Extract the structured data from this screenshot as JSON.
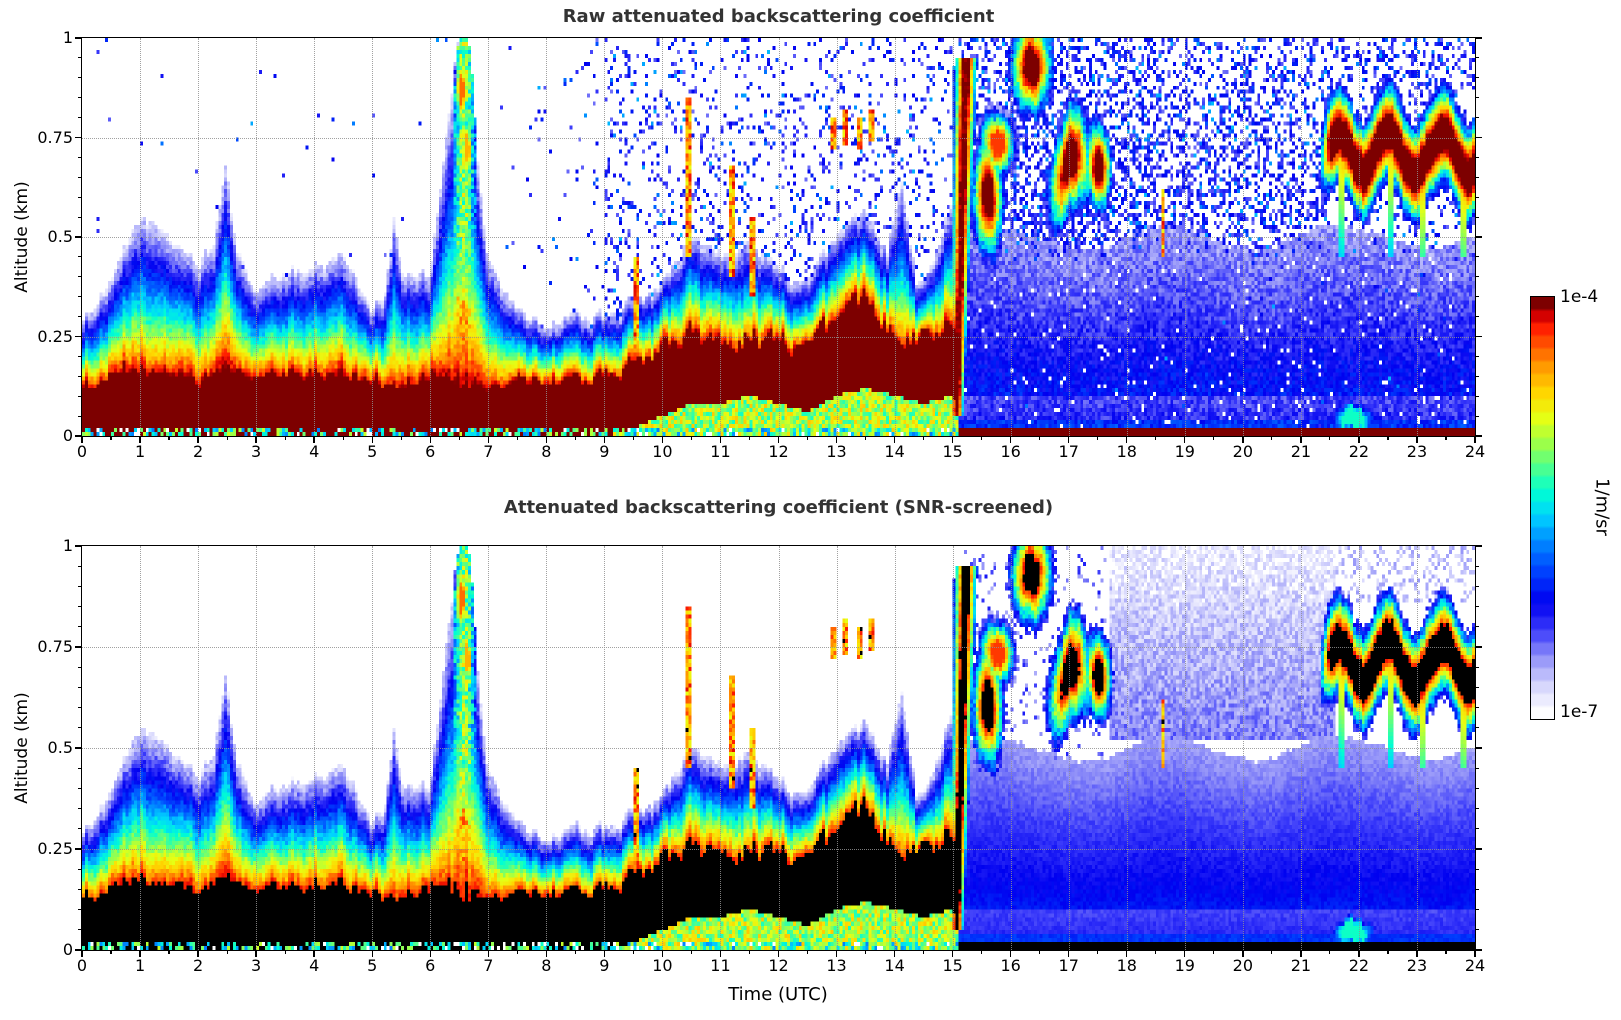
{
  "figure": {
    "background": "#ffffff",
    "title_color": "#333333",
    "axis_color": "#000000"
  },
  "chart_data": {
    "type": "heatmap",
    "x": {
      "label": "Time (UTC)",
      "min": 0,
      "max": 24,
      "major_ticks": [
        0,
        1,
        2,
        3,
        4,
        5,
        6,
        7,
        8,
        9,
        10,
        11,
        12,
        13,
        14,
        15,
        16,
        17,
        18,
        19,
        20,
        21,
        22,
        23,
        24
      ],
      "tick_labels": [
        "0",
        "1",
        "2",
        "3",
        "4",
        "5",
        "6",
        "7",
        "8",
        "9",
        "10",
        "11",
        "12",
        "13",
        "14",
        "15",
        "16",
        "17",
        "18",
        "19",
        "20",
        "21",
        "22",
        "23",
        "24"
      ],
      "minor_tick_step": 0.5,
      "gridlines": [
        1,
        2,
        3,
        4,
        5,
        6,
        7,
        8,
        9,
        10,
        11,
        12,
        13,
        14,
        15,
        16,
        17,
        18,
        19,
        20,
        21,
        22,
        23
      ]
    },
    "y": {
      "label": "Altitude (km)",
      "min": 0,
      "max": 1,
      "major_ticks": [
        0,
        0.25,
        0.5,
        0.75,
        1
      ],
      "tick_labels": [
        "0",
        "0.25",
        "0.5",
        "0.75",
        "1"
      ],
      "minor_tick_step": 0.05,
      "gridlines": [
        0.25,
        0.5,
        0.75
      ]
    },
    "colorbar": {
      "max_label": "1e-4",
      "min_label": "1e-7",
      "unit": "1/m/sr",
      "scale": "log",
      "colormap": "jet-with-white-minimum",
      "bands": 33
    },
    "panels": [
      {
        "title": "Raw attenuated backscattering coefficient",
        "id": "raw",
        "black_saturation": false,
        "noise_screened": false
      },
      {
        "title": "Attenuated backscattering coefficient (SNR-screened)",
        "id": "screened",
        "black_saturation": true,
        "noise_screened": true
      }
    ],
    "model": {
      "comment_units": "hours UTC / km; values are normalized log-backscatter 0..1 (0 = 1e-7, 1 = 1e-4 1/m/sr)",
      "sample_step_h": 0.5,
      "layer_top_km": [
        0.3,
        0.38,
        0.55,
        0.5,
        0.44,
        0.5,
        0.37,
        0.4,
        0.43,
        0.46,
        0.32,
        0.42,
        0.4,
        1.0,
        0.45,
        0.3,
        0.28,
        0.3,
        0.3,
        0.34,
        0.38,
        0.5,
        0.46,
        0.5,
        0.42,
        0.38,
        0.5,
        0.55,
        0.45,
        0.38,
        0.6,
        0.4,
        0.38,
        0.36,
        0.38,
        0.4,
        0.35,
        0.33,
        0.32,
        0.3,
        0.3,
        0.3,
        0.3,
        0.3,
        0.3,
        0.3,
        0.3,
        0.3,
        0.3
      ],
      "core_top_km": [
        0.13,
        0.14,
        0.16,
        0.15,
        0.14,
        0.16,
        0.15,
        0.15,
        0.16,
        0.16,
        0.14,
        0.13,
        0.14,
        0.13,
        0.12,
        0.13,
        0.14,
        0.14,
        0.15,
        0.18,
        0.22,
        0.24,
        0.24,
        0.26,
        0.24,
        0.22,
        0.28,
        0.32,
        0.28,
        0.26,
        0.3,
        0.02,
        0.02,
        0.02,
        0.02,
        0.02,
        0.02,
        0.02,
        0.02,
        0.02,
        0.02,
        0.02,
        0.02,
        0.02,
        0.02,
        0.02,
        0.02,
        0.02,
        0.02
      ],
      "core_base_km": [
        0,
        0,
        0,
        0,
        0,
        0,
        0,
        0,
        0,
        0,
        0,
        0,
        0,
        0,
        0,
        0,
        0,
        0,
        0,
        0.02,
        0.05,
        0.08,
        0.08,
        0.1,
        0.08,
        0.06,
        0.1,
        0.12,
        0.1,
        0.08,
        0.1,
        0,
        0,
        0,
        0,
        0,
        0,
        0,
        0,
        0,
        0,
        0,
        0,
        0,
        0,
        0,
        0,
        0,
        0
      ],
      "layer_era_end_h": 15.12,
      "blue_field": {
        "start_h": 15.12,
        "top_km": 0.5
      },
      "clouds": [
        {
          "kind": "plume",
          "t0": 6.38,
          "t1": 6.78,
          "z0": 0.12,
          "z1": 1.0,
          "peak": 0.62
        },
        {
          "kind": "blob",
          "t0": 6.45,
          "t1": 6.62,
          "zc": 0.87,
          "h": 0.14,
          "peak": 0.88
        },
        {
          "kind": "blob",
          "t0": 6.55,
          "t1": 6.72,
          "zc": 0.72,
          "h": 0.12,
          "peak": 0.82
        },
        {
          "kind": "wall",
          "t0": 14.98,
          "t1": 15.35,
          "z0": 0.05,
          "z1": 0.95,
          "peak": 1.0
        },
        {
          "kind": "blob",
          "t0": 15.42,
          "t1": 15.8,
          "zc": 0.6,
          "h": 0.22,
          "peak": 1.0
        },
        {
          "kind": "blob",
          "t0": 15.55,
          "t1": 16.0,
          "zc": 0.74,
          "h": 0.12,
          "peak": 0.92
        },
        {
          "kind": "blob",
          "t0": 16.1,
          "t1": 16.62,
          "zc": 0.93,
          "h": 0.18,
          "peak": 1.0
        },
        {
          "kind": "blob",
          "t0": 16.75,
          "t1": 17.3,
          "zc": 0.66,
          "h": 0.2,
          "peak": 1.0,
          "wavy": true
        },
        {
          "kind": "blob",
          "t0": 17.35,
          "t1": 17.68,
          "zc": 0.68,
          "h": 0.16,
          "peak": 1.0
        },
        {
          "kind": "layer",
          "t0": 21.55,
          "t1": 24.0,
          "zc": 0.71,
          "h": 0.17,
          "peak": 1.0,
          "wavy": true,
          "downspikes": [
            21.68,
            22.55,
            23.12,
            23.8
          ]
        },
        {
          "kind": "blob",
          "t0": 7.45,
          "t1": 7.95,
          "zc": 0.07,
          "h": 0.12,
          "peak": 0.62
        },
        {
          "kind": "blob",
          "t0": 21.5,
          "t1": 22.3,
          "zc": 0.04,
          "h": 0.08,
          "peak": 0.55
        }
      ],
      "streaks": [
        {
          "t": 9.55,
          "z0": 0.1,
          "z1": 0.45
        },
        {
          "t": 10.45,
          "z0": 0.45,
          "z1": 0.85
        },
        {
          "t": 11.2,
          "z0": 0.4,
          "z1": 0.68
        },
        {
          "t": 11.55,
          "z0": 0.35,
          "z1": 0.55
        },
        {
          "t": 12.95,
          "z0": 0.72,
          "z1": 0.8
        },
        {
          "t": 13.15,
          "z0": 0.73,
          "z1": 0.82
        },
        {
          "t": 13.4,
          "z0": 0.72,
          "z1": 0.8
        },
        {
          "t": 13.6,
          "z0": 0.74,
          "z1": 0.82
        },
        {
          "t": 18.62,
          "z0": 0.45,
          "z1": 0.62
        }
      ],
      "noise": {
        "raw_sparse_before_h": 7,
        "raw_ramp_h": [
          7,
          9
        ],
        "raw_moderate_h": [
          9,
          15.12
        ],
        "raw_dense_after_h": 15.12,
        "screened_pale_patch_h": [
          17.7,
          21.6
        ],
        "screened_pale_patch_z": [
          0.52,
          1.0
        ]
      }
    }
  }
}
